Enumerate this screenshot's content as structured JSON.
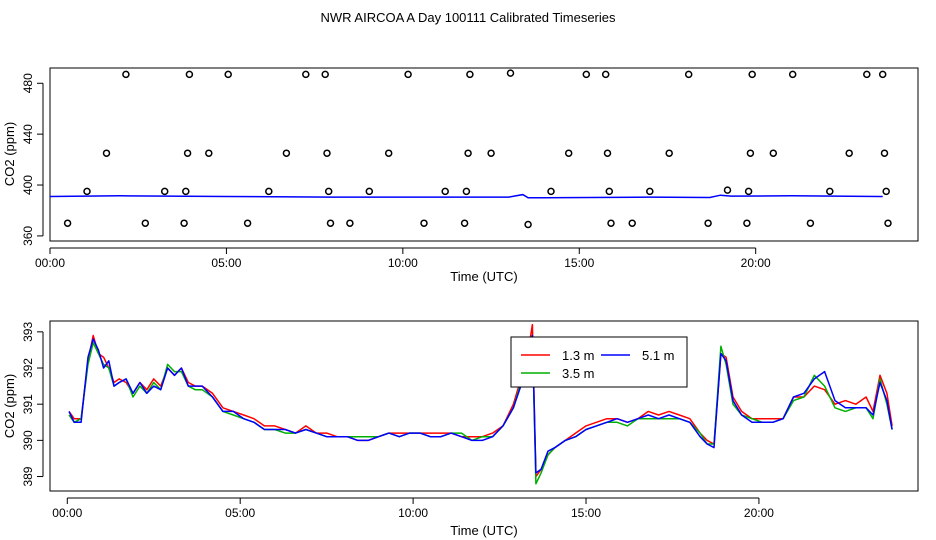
{
  "title": "NWR AIRCOA A  Day 100111  Calibrated Timeseries",
  "chart_data": [
    {
      "type": "scatter",
      "xlabel": "Time (UTC)",
      "ylabel": "CO2 (ppm)",
      "xlim": [
        0,
        24.6
      ],
      "ylim": [
        356,
        492
      ],
      "xticks": [
        0,
        5,
        10,
        15,
        20
      ],
      "xtick_labels": [
        "00:00",
        "05:00",
        "10:00",
        "15:00",
        "20:00"
      ],
      "yticks": [
        360,
        400,
        440,
        480
      ],
      "ytick_labels": [
        "360",
        "400",
        "440",
        "480"
      ],
      "grid": false,
      "points": [
        [
          0.5,
          370
        ],
        [
          1.05,
          395
        ],
        [
          1.6,
          425
        ],
        [
          2.15,
          487
        ],
        [
          2.7,
          370
        ],
        [
          3.25,
          395
        ],
        [
          3.8,
          370
        ],
        [
          3.85,
          395
        ],
        [
          3.9,
          425
        ],
        [
          3.95,
          487
        ],
        [
          4.5,
          425
        ],
        [
          5.05,
          487
        ],
        [
          5.6,
          370
        ],
        [
          6.2,
          395
        ],
        [
          6.7,
          425
        ],
        [
          7.25,
          487
        ],
        [
          7.8,
          487
        ],
        [
          7.85,
          425
        ],
        [
          7.9,
          395
        ],
        [
          7.95,
          370
        ],
        [
          8.5,
          370
        ],
        [
          9.05,
          395
        ],
        [
          9.6,
          425
        ],
        [
          10.15,
          487
        ],
        [
          10.6,
          370
        ],
        [
          11.2,
          395
        ],
        [
          11.75,
          370
        ],
        [
          11.8,
          395
        ],
        [
          11.85,
          425
        ],
        [
          11.9,
          487
        ],
        [
          12.5,
          425
        ],
        [
          13.05,
          488
        ],
        [
          13.55,
          369
        ],
        [
          14.2,
          395
        ],
        [
          14.7,
          425
        ],
        [
          15.2,
          487
        ],
        [
          15.75,
          487
        ],
        [
          15.8,
          425
        ],
        [
          15.85,
          395
        ],
        [
          15.9,
          370
        ],
        [
          16.5,
          370
        ],
        [
          17.0,
          395
        ],
        [
          17.55,
          425
        ],
        [
          18.1,
          487
        ],
        [
          18.65,
          370
        ],
        [
          19.2,
          396
        ],
        [
          19.75,
          370
        ],
        [
          19.8,
          395
        ],
        [
          19.85,
          425
        ],
        [
          19.9,
          487
        ],
        [
          20.5,
          425
        ],
        [
          21.05,
          487
        ],
        [
          21.55,
          370
        ],
        [
          22.1,
          395
        ],
        [
          22.65,
          425
        ],
        [
          23.15,
          487
        ],
        [
          23.6,
          487
        ],
        [
          23.65,
          425
        ],
        [
          23.7,
          395
        ],
        [
          23.75,
          370
        ]
      ],
      "line": {
        "color": "#0000ff",
        "x": [
          0,
          2,
          5,
          8,
          10,
          13,
          13.4,
          13.55,
          14,
          17,
          18.7,
          19.0,
          19.3,
          21,
          23.5,
          23.6
        ],
        "y": [
          391,
          391.5,
          391,
          390.5,
          390.5,
          390.5,
          392.5,
          390,
          390,
          390.5,
          390.2,
          392,
          391.3,
          391.5,
          391,
          391
        ]
      }
    },
    {
      "type": "line",
      "xlabel": "Time (UTC)",
      "ylabel": "CO2 (ppm)",
      "xlim": [
        -0.5,
        24.6
      ],
      "ylim": [
        388.6,
        393.3
      ],
      "xticks": [
        0,
        5,
        10,
        15,
        20
      ],
      "xtick_labels": [
        "00:00",
        "05:00",
        "10:00",
        "15:00",
        "20:00"
      ],
      "yticks": [
        389,
        390,
        391,
        392,
        393
      ],
      "ytick_labels": [
        "389",
        "390",
        "391",
        "392",
        "393"
      ],
      "grid": false,
      "legend": "top-center",
      "series": [
        {
          "name": "1.3 m",
          "color": "#ff0000",
          "x": [
            0.05,
            0.2,
            0.4,
            0.6,
            0.75,
            0.9,
            1.05,
            1.2,
            1.35,
            1.5,
            1.7,
            1.9,
            2.1,
            2.3,
            2.5,
            2.7,
            2.9,
            3.1,
            3.3,
            3.5,
            3.7,
            3.9,
            4.2,
            4.5,
            4.8,
            5.1,
            5.4,
            5.7,
            6.0,
            6.3,
            6.6,
            6.9,
            7.2,
            7.5,
            7.8,
            8.1,
            8.4,
            8.7,
            9.0,
            9.3,
            9.6,
            9.9,
            10.2,
            10.5,
            10.8,
            11.1,
            11.4,
            11.7,
            12.0,
            12.3,
            12.6,
            12.9,
            13.15,
            13.35,
            13.45,
            13.55,
            13.7,
            13.9,
            14.1,
            14.4,
            14.7,
            15.0,
            15.3,
            15.6,
            15.9,
            16.2,
            16.5,
            16.8,
            17.1,
            17.4,
            17.7,
            18.0,
            18.3,
            18.5,
            18.7,
            18.9,
            19.05,
            19.25,
            19.5,
            19.8,
            20.1,
            20.4,
            20.7,
            21.0,
            21.3,
            21.6,
            21.9,
            22.2,
            22.5,
            22.8,
            23.1,
            23.3,
            23.5,
            23.7,
            23.85
          ],
          "y": [
            390.8,
            390.6,
            390.6,
            392.2,
            392.9,
            392.4,
            392.3,
            392.0,
            391.6,
            391.7,
            391.6,
            391.3,
            391.6,
            391.4,
            391.7,
            391.5,
            392.0,
            391.8,
            392.0,
            391.6,
            391.5,
            391.5,
            391.3,
            390.9,
            390.8,
            390.7,
            390.6,
            390.4,
            390.4,
            390.3,
            390.2,
            390.4,
            390.2,
            390.2,
            390.1,
            390.1,
            390.0,
            390.0,
            390.1,
            390.2,
            390.2,
            390.2,
            390.2,
            390.2,
            390.2,
            390.2,
            390.1,
            390.1,
            390.1,
            390.2,
            390.4,
            391.0,
            391.8,
            392.6,
            393.2,
            389.0,
            389.2,
            389.6,
            389.8,
            390.0,
            390.2,
            390.4,
            390.5,
            390.6,
            390.6,
            390.5,
            390.6,
            390.8,
            390.7,
            390.8,
            390.7,
            390.6,
            390.2,
            390.0,
            389.9,
            392.4,
            392.3,
            391.2,
            390.8,
            390.6,
            390.6,
            390.6,
            390.6,
            391.2,
            391.2,
            391.5,
            391.4,
            391.0,
            391.1,
            391.0,
            391.2,
            390.8,
            391.8,
            391.3,
            390.4
          ]
        },
        {
          "name": "3.5 m",
          "color": "#00b000",
          "x": [
            0.05,
            0.2,
            0.4,
            0.6,
            0.75,
            0.9,
            1.05,
            1.2,
            1.35,
            1.5,
            1.7,
            1.9,
            2.1,
            2.3,
            2.5,
            2.7,
            2.9,
            3.1,
            3.3,
            3.5,
            3.7,
            3.9,
            4.2,
            4.5,
            4.8,
            5.1,
            5.4,
            5.7,
            6.0,
            6.3,
            6.6,
            6.9,
            7.2,
            7.5,
            7.8,
            8.1,
            8.4,
            8.7,
            9.0,
            9.3,
            9.6,
            9.9,
            10.2,
            10.5,
            10.8,
            11.1,
            11.4,
            11.7,
            12.0,
            12.3,
            12.6,
            12.9,
            13.15,
            13.35,
            13.45,
            13.55,
            13.7,
            13.9,
            14.1,
            14.4,
            14.7,
            15.0,
            15.3,
            15.6,
            15.9,
            16.2,
            16.5,
            16.8,
            17.1,
            17.4,
            17.7,
            18.0,
            18.3,
            18.5,
            18.7,
            18.9,
            19.05,
            19.25,
            19.5,
            19.8,
            20.1,
            20.4,
            20.7,
            21.0,
            21.3,
            21.6,
            21.9,
            22.2,
            22.5,
            22.8,
            23.1,
            23.3,
            23.5,
            23.7,
            23.85
          ],
          "y": [
            390.7,
            390.5,
            390.6,
            392.1,
            392.7,
            392.4,
            392.1,
            392.0,
            391.5,
            391.6,
            391.7,
            391.2,
            391.5,
            391.3,
            391.6,
            391.4,
            392.1,
            391.9,
            391.9,
            391.5,
            391.4,
            391.4,
            391.2,
            390.8,
            390.7,
            390.6,
            390.5,
            390.3,
            390.3,
            390.2,
            390.2,
            390.3,
            390.2,
            390.1,
            390.1,
            390.1,
            390.1,
            390.1,
            390.1,
            390.2,
            390.1,
            390.2,
            390.2,
            390.1,
            390.1,
            390.2,
            390.2,
            390.0,
            390.1,
            390.1,
            390.4,
            390.9,
            391.7,
            392.5,
            392.9,
            388.8,
            389.1,
            389.6,
            389.8,
            390.0,
            390.1,
            390.3,
            390.4,
            390.5,
            390.5,
            390.4,
            390.6,
            390.6,
            390.6,
            390.6,
            390.6,
            390.5,
            390.2,
            389.9,
            389.9,
            392.6,
            392.1,
            391.0,
            390.7,
            390.6,
            390.5,
            390.5,
            390.6,
            391.1,
            391.2,
            391.8,
            391.5,
            390.9,
            390.8,
            390.9,
            390.9,
            390.6,
            391.7,
            391.0,
            390.3
          ]
        },
        {
          "name": "5.1 m",
          "color": "#0000ff",
          "x": [
            0.05,
            0.2,
            0.4,
            0.6,
            0.75,
            0.9,
            1.05,
            1.2,
            1.35,
            1.5,
            1.7,
            1.9,
            2.1,
            2.3,
            2.5,
            2.7,
            2.9,
            3.1,
            3.3,
            3.5,
            3.7,
            3.9,
            4.2,
            4.5,
            4.8,
            5.1,
            5.4,
            5.7,
            6.0,
            6.3,
            6.6,
            6.9,
            7.2,
            7.5,
            7.8,
            8.1,
            8.4,
            8.7,
            9.0,
            9.3,
            9.6,
            9.9,
            10.2,
            10.5,
            10.8,
            11.1,
            11.4,
            11.7,
            12.0,
            12.3,
            12.6,
            12.9,
            13.15,
            13.35,
            13.45,
            13.55,
            13.7,
            13.9,
            14.1,
            14.4,
            14.7,
            15.0,
            15.3,
            15.6,
            15.9,
            16.2,
            16.5,
            16.8,
            17.1,
            17.4,
            17.7,
            18.0,
            18.3,
            18.5,
            18.7,
            18.9,
            19.05,
            19.25,
            19.5,
            19.8,
            20.1,
            20.4,
            20.7,
            21.0,
            21.3,
            21.6,
            21.9,
            22.2,
            22.5,
            22.8,
            23.1,
            23.3,
            23.5,
            23.7,
            23.85
          ],
          "y": [
            390.8,
            390.5,
            390.5,
            392.3,
            392.8,
            392.5,
            392.0,
            392.2,
            391.5,
            391.6,
            391.7,
            391.3,
            391.6,
            391.3,
            391.5,
            391.4,
            392.0,
            391.8,
            392.0,
            391.5,
            391.5,
            391.5,
            391.2,
            390.8,
            390.8,
            390.6,
            390.5,
            390.3,
            390.3,
            390.3,
            390.2,
            390.3,
            390.2,
            390.1,
            390.1,
            390.1,
            390.0,
            390.0,
            390.1,
            390.2,
            390.1,
            390.2,
            390.2,
            390.1,
            390.1,
            390.2,
            390.1,
            390.0,
            390.0,
            390.1,
            390.4,
            390.9,
            391.6,
            392.4,
            392.9,
            389.1,
            389.2,
            389.7,
            389.8,
            390.0,
            390.1,
            390.3,
            390.4,
            390.5,
            390.6,
            390.5,
            390.6,
            390.7,
            390.6,
            390.7,
            390.6,
            390.5,
            390.1,
            389.9,
            389.8,
            392.4,
            392.2,
            391.1,
            390.7,
            390.5,
            390.5,
            390.5,
            390.6,
            391.2,
            391.3,
            391.7,
            391.9,
            391.1,
            390.9,
            390.9,
            390.9,
            390.7,
            391.6,
            391.1,
            390.3
          ]
        }
      ]
    }
  ]
}
